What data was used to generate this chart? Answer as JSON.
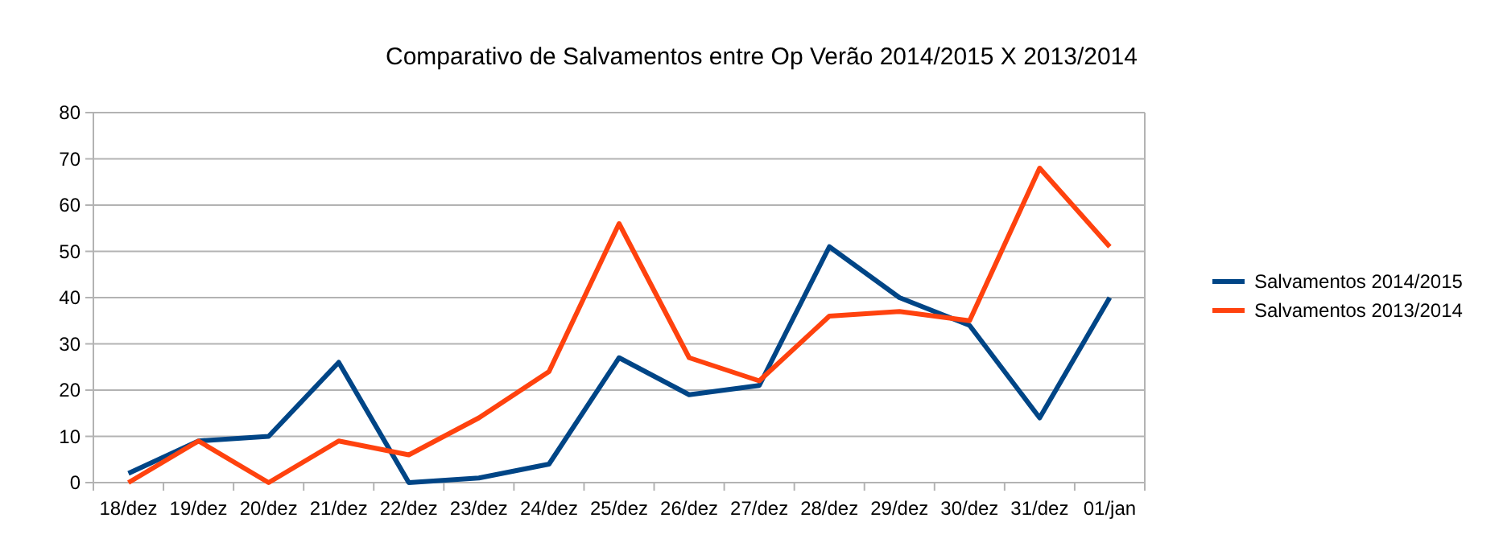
{
  "chart_data": {
    "type": "line",
    "title": "Comparativo de Salvamentos entre Op Verão 2014/2015 X 2013/2014",
    "categories": [
      "18/dez",
      "19/dez",
      "20/dez",
      "21/dez",
      "22/dez",
      "23/dez",
      "24/dez",
      "25/dez",
      "26/dez",
      "27/dez",
      "28/dez",
      "29/dez",
      "30/dez",
      "31/dez",
      "01/jan"
    ],
    "series": [
      {
        "name": "Salvamentos 2014/2015",
        "color": "#004586",
        "values": [
          2,
          9,
          10,
          26,
          0,
          1,
          4,
          27,
          19,
          21,
          51,
          40,
          34,
          14,
          40
        ]
      },
      {
        "name": "Salvamentos 2013/2014",
        "color": "#ff420e",
        "values": [
          0,
          9,
          0,
          9,
          6,
          14,
          24,
          56,
          27,
          22,
          36,
          37,
          35,
          68,
          51
        ]
      }
    ],
    "ylim": [
      0,
      80
    ],
    "yticks": [
      0,
      10,
      20,
      30,
      40,
      50,
      60,
      70,
      80
    ],
    "grid": "y",
    "legend": "right",
    "marker": "none",
    "line_style": "solid"
  }
}
